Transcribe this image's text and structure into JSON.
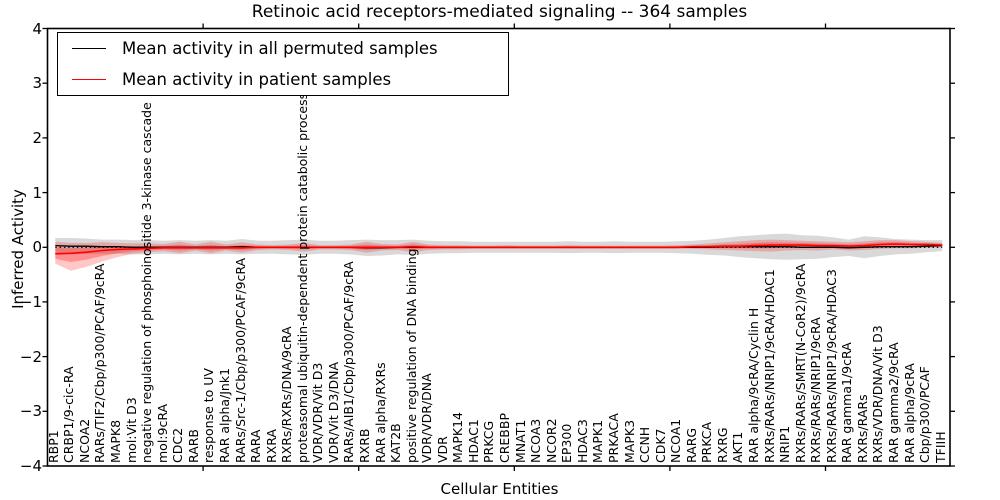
{
  "figure": {
    "title": "Retinoic acid receptors-mediated signaling -- 364 samples",
    "xlabel": "Cellular Entities",
    "ylabel": "Inferred Activity"
  },
  "legend": {
    "items": [
      {
        "label": "Mean activity in all permuted samples",
        "color": "#000000"
      },
      {
        "label": "Mean activity in patient samples",
        "color": "#ff0000"
      }
    ]
  },
  "chart_data": {
    "type": "line",
    "title": "Retinoic acid receptors-mediated signaling -- 364 samples",
    "xlabel": "Cellular Entities",
    "ylabel": "Inferred Activity",
    "ylim": [
      -4,
      4
    ],
    "ytick_values": [
      4,
      3,
      2,
      1,
      0,
      -1,
      -2,
      -3,
      -4
    ],
    "ytick_labels": [
      "4",
      "3",
      "2",
      "1",
      "0",
      "−1",
      "−2",
      "−3",
      "−4"
    ],
    "xticks_at": [
      10,
      20,
      30,
      40,
      50
    ],
    "grid": false,
    "legend_position": "upper left",
    "zero_line": 0,
    "categories": [
      "RBP1",
      "CRBP1/9-cic-RA",
      "NCOA2",
      "RARs/TIF2/Cbp/p300/PCAF/9cRA",
      "MAPK8",
      "mol:Vit D3",
      "negative regulation of phosphoinositide 3-kinase cascade",
      "mol:9cRA",
      "CDC2",
      "RARB",
      "response to UV",
      "RAR alpha/Jnk1",
      "RARs/Src-1/Cbp/p300/PCAF/9cRA",
      "RARA",
      "RXRA",
      "RXRs/RXRs/DNA/9cRA",
      "proteasomal ubiquitin-dependent protein catabolic process",
      "VDR/VDR/Vit D3",
      "VDR/Vit D3/DNA",
      "RARs/AIB1/Cbp/p300/PCAF/9cRA",
      "RXRB",
      "RAR alpha/RXRs",
      "KAT2B",
      "positive regulation of DNA binding",
      "VDR/VDR/DNA",
      "VDR",
      "MAPK14",
      "HDAC1",
      "PRKCG",
      "CREBBP",
      "MNAT1",
      "NCOA3",
      "NCOR2",
      "EP300",
      "HDAC3",
      "MAPK1",
      "PRKACA",
      "MAPK3",
      "CCNH",
      "CDK7",
      "NCOA1",
      "RARG",
      "PRKCA",
      "RXRG",
      "AKT1",
      "RAR alpha/9cRA/Cyclin H",
      "RXRs/RARs/NRIP1/9cRA/HDAC1",
      "NRIP1",
      "RXRs/RARs/SMRT(N-CoR2)/9cRA",
      "RXRs/RARs/NRIP1/9cRA",
      "RXRs/RARs/NRIP1/9cRA/HDAC3",
      "RAR gamma1/9cRA",
      "RXRs/RARs",
      "RXRs/VDR/DNA/Vit D3",
      "RAR gamma2/9cRA",
      "RAR alpha/9cRA",
      "Cbp/p300/PCAF",
      "TFIIH"
    ],
    "series": [
      {
        "name": "Mean activity in all permuted samples",
        "color": "#000000",
        "values": [
          0.03,
          0.02,
          0.02,
          0.01,
          0.01,
          0,
          0,
          0,
          0,
          0,
          0,
          0,
          0.01,
          0,
          0,
          0,
          0,
          0,
          0,
          0,
          -0.01,
          -0.01,
          0,
          0,
          0,
          0,
          0,
          0,
          0,
          0,
          0,
          0,
          0,
          0,
          0,
          0,
          0,
          0,
          0,
          0,
          0,
          0,
          0,
          0.01,
          0.01,
          0.01,
          0.01,
          0.01,
          0,
          0,
          0,
          -0.01,
          0,
          0.01,
          0.01,
          0.01,
          0.02,
          0.03
        ]
      },
      {
        "name": "Mean activity in patient samples",
        "color": "#ff0000",
        "values": [
          -0.12,
          -0.11,
          -0.09,
          -0.06,
          -0.04,
          -0.03,
          -0.02,
          -0.01,
          -0.01,
          -0.01,
          -0.01,
          -0.01,
          -0.01,
          0,
          0,
          0,
          0,
          0,
          0,
          0,
          0,
          0,
          0,
          0.01,
          0,
          0,
          0,
          0,
          0,
          0,
          0,
          0,
          0,
          0,
          0,
          0,
          0,
          0,
          0,
          0,
          0,
          0.01,
          0.01,
          0.02,
          0.02,
          0.03,
          0.04,
          0.04,
          0.04,
          0.03,
          0.03,
          0.02,
          0.03,
          0.05,
          0.06,
          0.05,
          0.05,
          0.04
        ]
      }
    ],
    "bands": {
      "permuted": {
        "fill": "rgba(0,0,0,0.15)",
        "upper": [
          0.17,
          0.17,
          0.16,
          0.14,
          0.14,
          0.13,
          0.13,
          0.12,
          0.13,
          0.12,
          0.13,
          0.12,
          0.15,
          0.12,
          0.12,
          0.13,
          0.14,
          0.12,
          0.12,
          0.13,
          0.14,
          0.13,
          0.13,
          0.14,
          0.12,
          0.11,
          0.11,
          0.1,
          0.1,
          0.1,
          0.1,
          0.1,
          0.1,
          0.11,
          0.1,
          0.1,
          0.11,
          0.1,
          0.1,
          0.1,
          0.11,
          0.12,
          0.14,
          0.17,
          0.2,
          0.22,
          0.24,
          0.25,
          0.22,
          0.21,
          0.18,
          0.14,
          0.2,
          0.18,
          0.15,
          0.14,
          0.13,
          0.13
        ],
        "lower": [
          -0.11,
          -0.13,
          -0.12,
          -0.12,
          -0.12,
          -0.13,
          -0.13,
          -0.12,
          -0.13,
          -0.12,
          -0.13,
          -0.12,
          -0.13,
          -0.12,
          -0.12,
          -0.13,
          -0.14,
          -0.12,
          -0.12,
          -0.13,
          -0.16,
          -0.15,
          -0.13,
          -0.14,
          -0.12,
          -0.11,
          -0.11,
          -0.1,
          -0.1,
          -0.1,
          -0.1,
          -0.1,
          -0.1,
          -0.11,
          -0.1,
          -0.1,
          -0.11,
          -0.1,
          -0.1,
          -0.1,
          -0.11,
          -0.12,
          -0.14,
          -0.15,
          -0.18,
          -0.2,
          -0.22,
          -0.23,
          -0.22,
          -0.21,
          -0.18,
          -0.16,
          -0.2,
          -0.16,
          -0.13,
          -0.12,
          -0.09,
          -0.07
        ]
      },
      "patient": {
        "fill": "rgba(255,0,0,0.22)",
        "upper": [
          0.1,
          0.08,
          0.08,
          0.09,
          0.08,
          0.07,
          0.07,
          0.06,
          0.1,
          0.05,
          0.1,
          0.05,
          0.09,
          0.05,
          0.04,
          0.05,
          0.08,
          0.04,
          0.04,
          0.05,
          0.1,
          0.06,
          0.05,
          0.1,
          0.05,
          0.04,
          0.04,
          0.03,
          0.03,
          0.04,
          0.03,
          0.03,
          0.03,
          0.04,
          0.03,
          0.03,
          0.03,
          0.03,
          0.03,
          0.03,
          0.04,
          0.05,
          0.07,
          0.09,
          0.11,
          0.13,
          0.14,
          0.13,
          0.12,
          0.11,
          0.1,
          0.09,
          0.11,
          0.13,
          0.13,
          0.11,
          0.1,
          0.08
        ],
        "lower": [
          -0.3,
          -0.43,
          -0.36,
          -0.26,
          -0.18,
          -0.12,
          -0.09,
          -0.07,
          -0.11,
          -0.06,
          -0.11,
          -0.06,
          -0.1,
          -0.05,
          -0.04,
          -0.05,
          -0.08,
          -0.04,
          -0.04,
          -0.05,
          -0.1,
          -0.06,
          -0.05,
          -0.09,
          -0.05,
          -0.04,
          -0.04,
          -0.03,
          -0.03,
          -0.03,
          -0.03,
          -0.03,
          -0.03,
          -0.03,
          -0.03,
          -0.03,
          -0.03,
          -0.03,
          -0.03,
          -0.03,
          -0.03,
          -0.03,
          -0.04,
          -0.05,
          -0.06,
          -0.07,
          -0.08,
          -0.06,
          -0.05,
          -0.06,
          -0.04,
          -0.06,
          -0.05,
          -0.03,
          -0.02,
          -0.02,
          -0.01,
          0.0
        ]
      }
    }
  }
}
